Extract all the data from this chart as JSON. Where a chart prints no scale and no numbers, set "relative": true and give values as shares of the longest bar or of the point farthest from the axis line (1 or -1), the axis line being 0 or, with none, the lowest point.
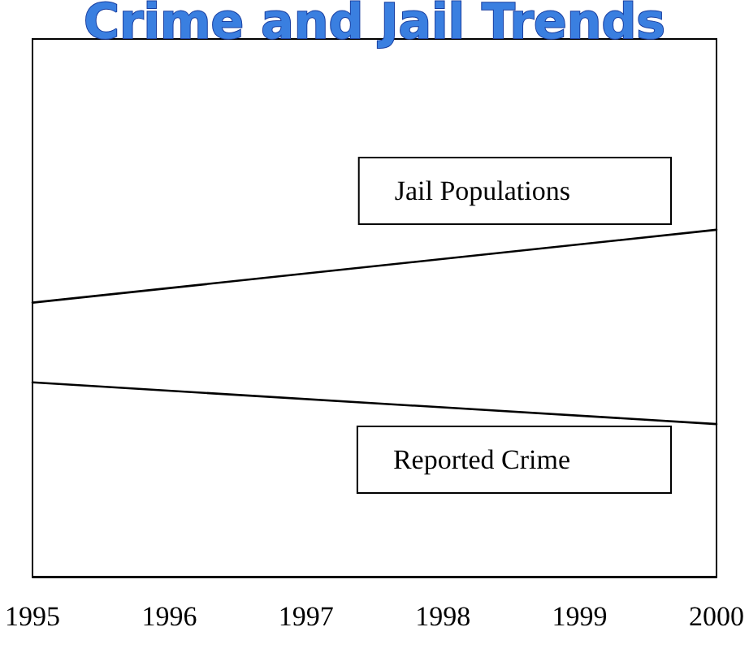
{
  "chart_data": {
    "type": "line",
    "title": "Crime and Jail Trends",
    "categories": [
      "1995",
      "1996",
      "1997",
      "1998",
      "1999",
      "2000"
    ],
    "relative": true,
    "marker": "none",
    "line_style": "solid",
    "grid": false,
    "legend": false,
    "series": [
      {
        "name": "Jail Populations",
        "color": "#000000",
        "values": [
          0.79,
          null,
          null,
          null,
          null,
          1
        ]
      },
      {
        "name": "Reported Crime",
        "color": "#000000",
        "values": [
          0.56,
          null,
          null,
          null,
          null,
          0.44
        ]
      }
    ]
  }
}
